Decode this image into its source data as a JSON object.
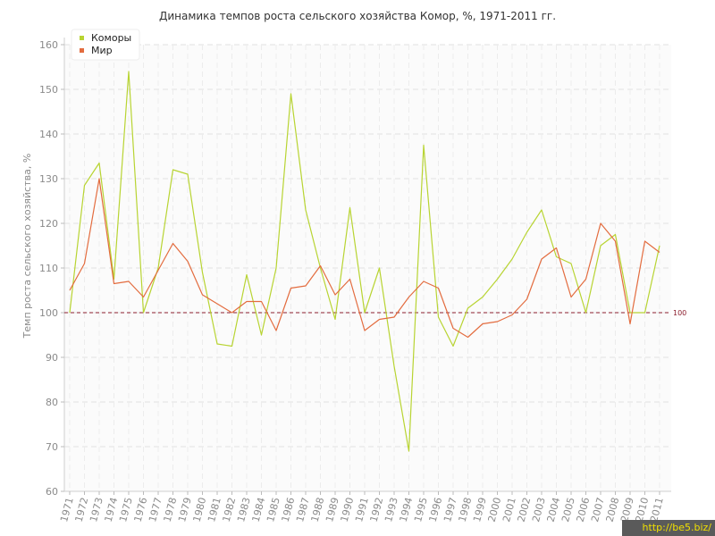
{
  "chart_data": {
    "type": "line",
    "title": "Динамика темпов роста сельского хозяйства Комор, %, 1971-2011 гг.",
    "xlabel": "",
    "ylabel": "Темп роста сельского хозяйства, %",
    "ylim": [
      60,
      160
    ],
    "yticks": [
      60,
      70,
      80,
      90,
      100,
      110,
      120,
      130,
      140,
      150,
      160
    ],
    "x": [
      1971,
      1972,
      1973,
      1974,
      1975,
      1976,
      1977,
      1978,
      1979,
      1980,
      1981,
      1982,
      1983,
      1984,
      1985,
      1986,
      1987,
      1988,
      1989,
      1990,
      1991,
      1992,
      1993,
      1994,
      1995,
      1996,
      1997,
      1998,
      1999,
      2000,
      2001,
      2002,
      2003,
      2004,
      2005,
      2006,
      2007,
      2008,
      2009,
      2010,
      2011
    ],
    "series": [
      {
        "name": "Коморы",
        "color": "#b8d432",
        "values": [
          100,
          128.5,
          133.5,
          107.5,
          154,
          100,
          110,
          132,
          131,
          109,
          93,
          92.5,
          108.5,
          95,
          110,
          149,
          123,
          110,
          98.5,
          123.5,
          100,
          110,
          88,
          69,
          137.5,
          99,
          92.5,
          101,
          103.5,
          107.5,
          112,
          118,
          123,
          112.5,
          111,
          100,
          115,
          117.5,
          100,
          100,
          115
        ]
      },
      {
        "name": "Мир",
        "color": "#e36c3f",
        "values": [
          105,
          111,
          130,
          106.5,
          107,
          103.5,
          109.5,
          115.5,
          111.5,
          104,
          102,
          100,
          102.5,
          102.5,
          96,
          105.5,
          106,
          110.5,
          104,
          107.5,
          96,
          98.5,
          99,
          103.5,
          107,
          105.5,
          96.5,
          94.5,
          97.5,
          98,
          99.5,
          103,
          112,
          114.5,
          103.5,
          107.5,
          120,
          116,
          97.5,
          116,
          113.5
        ]
      }
    ],
    "reference_line": {
      "value": 100,
      "label": "100",
      "color": "#8b1c2c"
    },
    "legend": {
      "position": "top-left"
    },
    "grid": true
  },
  "watermark": "http://be5.biz/"
}
